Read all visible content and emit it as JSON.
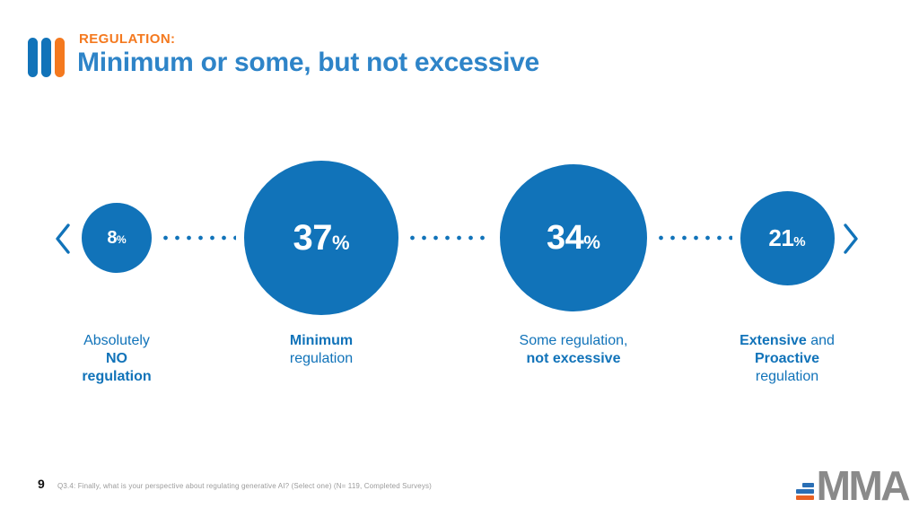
{
  "header": {
    "eyebrow": "REGULATION:",
    "title": "Minimum or some, but not excessive"
  },
  "chart_data": {
    "type": "proportional-bubble-scale",
    "title": "REGULATION: Minimum or some, but not excessive",
    "unit": "%",
    "layout_hint": "horizontal scale from no regulation (left) to proactive regulation (right), bubble area proportional to share, dotted connectors and end chevrons",
    "items": [
      {
        "value": 8,
        "suffix": "%",
        "diameter": 78,
        "label": "Absolutely NO regulation",
        "label_lines": [
          [
            {
              "t": "Absolutely",
              "b": false
            }
          ],
          [
            {
              "t": "NO",
              "b": true
            }
          ],
          [
            {
              "t": "regulation",
              "b": true
            }
          ]
        ]
      },
      {
        "value": 37,
        "suffix": "%",
        "diameter": 172,
        "label": "Minimum regulation",
        "label_lines": [
          [
            {
              "t": "Minimum",
              "b": true
            }
          ],
          [
            {
              "t": "regulation",
              "b": false
            }
          ]
        ]
      },
      {
        "value": 34,
        "suffix": "%",
        "diameter": 164,
        "label": "Some regulation, not excessive",
        "label_lines": [
          [
            {
              "t": "Some regulation,",
              "b": false
            }
          ],
          [
            {
              "t": "not excessive",
              "b": true
            }
          ]
        ]
      },
      {
        "value": 21,
        "suffix": "%",
        "diameter": 105,
        "label": "Extensive and Proactive regulation",
        "label_lines": [
          [
            {
              "t": "Extensive",
              "b": true
            },
            {
              "t": "and",
              "b": false
            }
          ],
          [
            {
              "t": "Proactive",
              "b": true
            }
          ],
          [
            {
              "t": "regulation",
              "b": false
            }
          ]
        ]
      }
    ]
  },
  "footer": {
    "page_number": "9",
    "note": "Q3.4: Finally, what is your perspective about regulating generative AI? (Select one) (N= 119, Completed Surveys)",
    "logo_text": "MMA"
  },
  "colors": {
    "brand_blue": "#1173B9",
    "title_blue": "#2E84C8",
    "accent_orange": "#F4791F",
    "logo_gray": "#8A8A8A",
    "note_gray": "#9B9B9B"
  }
}
